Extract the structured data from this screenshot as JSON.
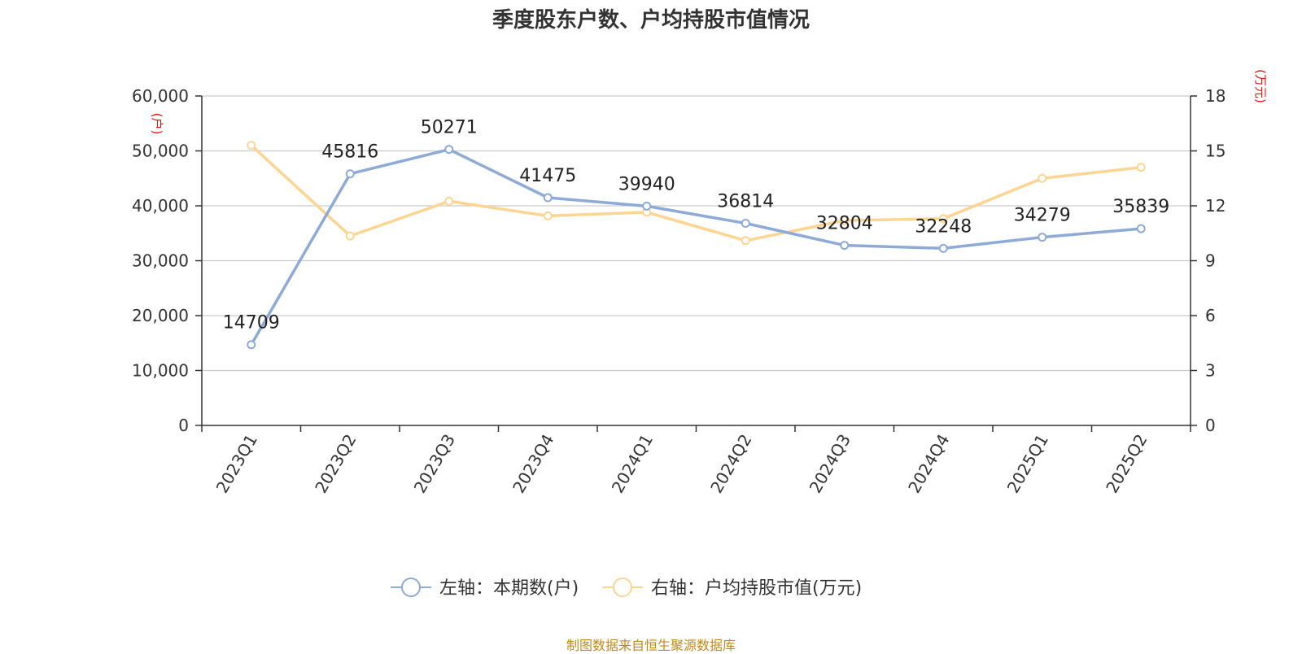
{
  "title": "季度股东户数、户均持股市值情况",
  "source": "制图数据来自恒生聚源数据库",
  "colors": {
    "series_left": "#8eaad6",
    "series_right": "#fdd593",
    "grid": "#cccccc",
    "axis": "#333333",
    "unit": "#e8110f",
    "source": "#c08a1a"
  },
  "chart_data": {
    "type": "line",
    "title": "季度股东户数、户均持股市值情况",
    "categories": [
      "2023Q1",
      "2023Q2",
      "2023Q3",
      "2023Q4",
      "2024Q1",
      "2024Q2",
      "2024Q3",
      "2024Q4",
      "2025Q1",
      "2025Q2"
    ],
    "y_left": {
      "unit": "(户)",
      "range": [
        0,
        60000
      ],
      "ticks": [
        "0",
        "10,000",
        "20,000",
        "30,000",
        "40,000",
        "50,000",
        "60,000"
      ]
    },
    "y_right": {
      "unit": "(万元)",
      "range": [
        0,
        18
      ],
      "ticks": [
        "0",
        "3",
        "6",
        "9",
        "12",
        "15",
        "18"
      ]
    },
    "grid": true,
    "legend_position": "bottom",
    "series": [
      {
        "name": "左轴：本期数(户)",
        "axis": "left",
        "values": [
          14709,
          45816,
          50271,
          41475,
          39940,
          36814,
          32804,
          32248,
          34279,
          35839
        ],
        "labels": [
          "14709",
          "45816",
          "50271",
          "41475",
          "39940",
          "36814",
          "32804",
          "32248",
          "34279",
          "35839"
        ]
      },
      {
        "name": "右轴：户均持股市值(万元)",
        "axis": "right",
        "values": [
          15.3,
          10.35,
          12.25,
          11.45,
          11.65,
          10.1,
          11.2,
          11.3,
          13.5,
          14.1
        ]
      }
    ]
  }
}
